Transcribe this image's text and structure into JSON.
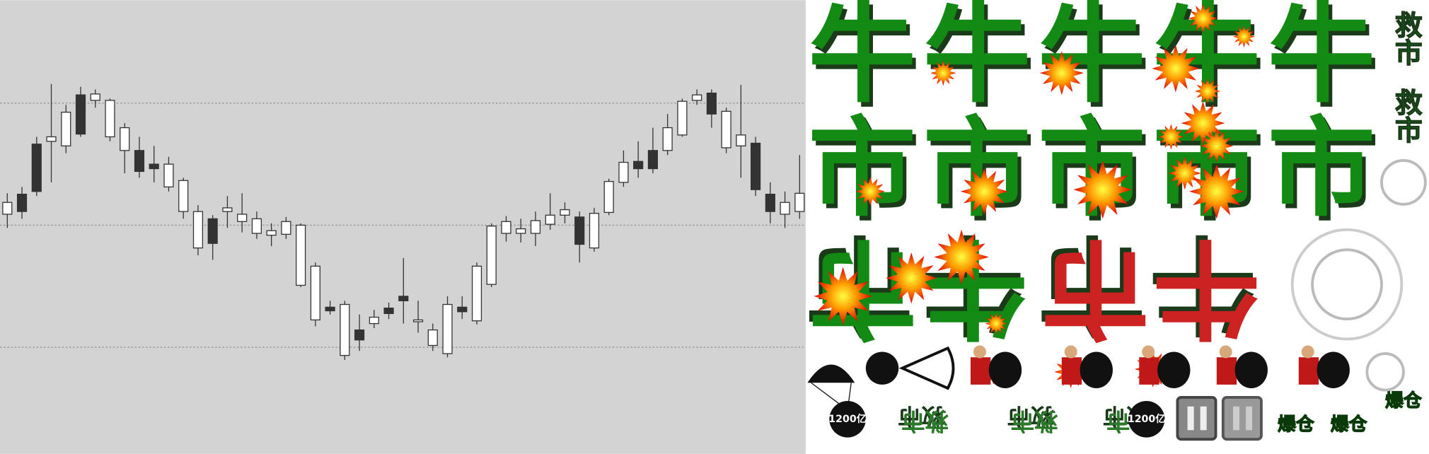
{
  "sprites": {
    "bull": [
      "牛",
      "牛",
      "牛",
      "牛",
      "牛"
    ],
    "market": [
      "市",
      "市",
      "市",
      "市",
      "市"
    ],
    "flipped": [
      "牛市",
      "牛市"
    ],
    "side": [
      "救市",
      "救市"
    ],
    "bomb_labels": [
      "1200亿",
      "1200亿"
    ],
    "rescue": [
      "救市",
      "救市",
      "救市"
    ],
    "liquidation": [
      "爆仓",
      "爆仓",
      "爆仓"
    ]
  }
}
